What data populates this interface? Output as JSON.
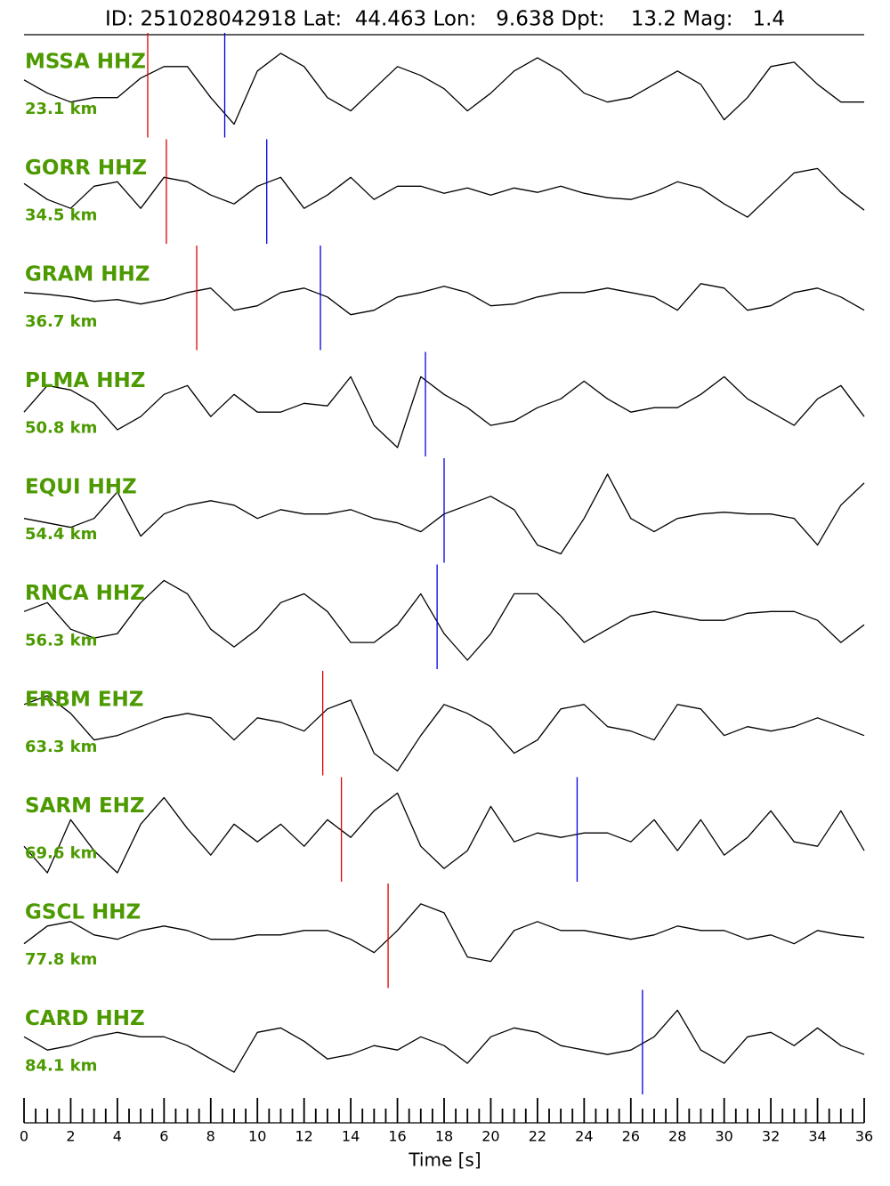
{
  "chart_data": {
    "type": "seismogram",
    "title": "ID: 251028042918 Lat:  44.463 Lon:   9.638 Dpt:    13.2 Mag:   1.4",
    "xlabel": "Time [s]",
    "xlim": [
      0,
      36
    ],
    "xticks": [
      0,
      2,
      4,
      6,
      8,
      10,
      12,
      14,
      16,
      18,
      20,
      22,
      24,
      26,
      28,
      30,
      32,
      34,
      36
    ],
    "xminorticks": [
      0.5,
      1,
      1.5,
      2.5,
      3,
      3.5,
      4.5,
      5,
      5.5,
      6.5,
      7,
      7.5,
      8.5,
      9,
      9.5,
      10.5,
      11,
      11.5,
      12.5,
      13,
      13.5,
      14.5,
      15,
      15.5,
      16.5,
      17,
      17.5,
      18.5,
      19,
      19.5,
      20.5,
      21,
      21.5,
      22.5,
      23,
      23.5,
      24.5,
      25,
      25.5,
      26.5,
      27,
      27.5,
      28.5,
      29,
      29.5,
      30.5,
      31,
      31.5,
      32.5,
      33,
      33.5,
      34.5,
      35,
      35.5
    ],
    "x": [
      0,
      1,
      2,
      3,
      4,
      5,
      6,
      7,
      8,
      9,
      10,
      11,
      12,
      13,
      14,
      15,
      16,
      17,
      18,
      19,
      20,
      21,
      22,
      23,
      24,
      25,
      26,
      27,
      28,
      29,
      30,
      31,
      32,
      33,
      34,
      35,
      36
    ],
    "ylim": [
      -60,
      60
    ],
    "trace_color": "#000000",
    "p_color": "#e00000",
    "s_color": "#0000e0",
    "label_color": "#4c9a00",
    "series": [
      {
        "name": "MSSA HHZ",
        "label": "23.1 km",
        "p_pick": 5.3,
        "s_pick": 8.6,
        "values": [
          5,
          -10,
          -20,
          -15,
          -15,
          7,
          20,
          20,
          -15,
          -45,
          15,
          35,
          20,
          -15,
          -30,
          -5,
          20,
          10,
          -5,
          -30,
          -10,
          15,
          30,
          15,
          -10,
          -20,
          -15,
          0,
          15,
          0,
          -40,
          -15,
          20,
          25,
          0,
          -20,
          -20
        ]
      },
      {
        "name": "GORR HHZ",
        "label": "34.5 km",
        "p_pick": 6.1,
        "s_pick": 10.4,
        "values": [
          8,
          -10,
          -20,
          5,
          10,
          -20,
          15,
          10,
          -5,
          -15,
          5,
          15,
          -20,
          -5,
          15,
          -10,
          5,
          5,
          -3,
          3,
          -5,
          3,
          -2,
          5,
          -3,
          -8,
          -10,
          -2,
          10,
          3,
          -15,
          -30,
          -5,
          20,
          25,
          -2,
          -22
        ]
      },
      {
        "name": "GRAM HHZ",
        "label": "36.7 km",
        "p_pick": 7.4,
        "s_pick": 12.7,
        "values": [
          5,
          3,
          0,
          -5,
          -3,
          -8,
          -3,
          5,
          10,
          -15,
          -10,
          5,
          10,
          0,
          -20,
          -15,
          0,
          5,
          12,
          5,
          -10,
          -8,
          0,
          5,
          5,
          10,
          5,
          0,
          -15,
          15,
          10,
          -15,
          -10,
          5,
          10,
          0,
          -15
        ]
      },
      {
        "name": "PLMA HHZ",
        "label": "50.8 km",
        "s_pick": 17.2,
        "values": [
          -10,
          20,
          15,
          0,
          -30,
          -15,
          10,
          20,
          -15,
          10,
          -10,
          -10,
          0,
          -3,
          30,
          -25,
          -50,
          30,
          10,
          -5,
          -25,
          -20,
          -5,
          5,
          25,
          5,
          -10,
          -5,
          -5,
          10,
          30,
          5,
          -10,
          -25,
          5,
          20,
          -15
        ]
      },
      {
        "name": "EQUI HHZ",
        "label": "54.4 km",
        "s_pick": 18.0,
        "values": [
          -10,
          -15,
          -20,
          -10,
          20,
          -30,
          -5,
          5,
          10,
          5,
          -10,
          0,
          -5,
          -5,
          0,
          -10,
          -15,
          -25,
          -5,
          5,
          15,
          0,
          -40,
          -50,
          -10,
          40,
          -10,
          -25,
          -10,
          -5,
          -3,
          -5,
          -5,
          -10,
          -40,
          5,
          30
        ]
      },
      {
        "name": "RNCA HHZ",
        "label": "56.3 km",
        "s_pick": 17.7,
        "values": [
          5,
          15,
          -15,
          -25,
          -20,
          15,
          40,
          25,
          -15,
          -35,
          -15,
          15,
          25,
          5,
          -30,
          -30,
          -10,
          25,
          -20,
          -50,
          -20,
          25,
          25,
          0,
          -30,
          -15,
          0,
          5,
          0,
          -5,
          -5,
          3,
          5,
          5,
          -5,
          -30,
          -10
        ]
      },
      {
        "name": "ERBM EHZ",
        "label": "63.3 km",
        "p_pick": 12.8,
        "values": [
          20,
          30,
          10,
          -20,
          -15,
          -5,
          5,
          10,
          5,
          -20,
          5,
          0,
          -10,
          15,
          25,
          -35,
          -55,
          -15,
          20,
          10,
          -5,
          -35,
          -20,
          15,
          20,
          -5,
          -10,
          -20,
          20,
          15,
          -15,
          -5,
          -10,
          -5,
          5,
          -5,
          -15
        ]
      },
      {
        "name": "SARM EHZ",
        "label": "69.6 km",
        "p_pick": 13.6,
        "s_pick": 23.7,
        "values": [
          -20,
          -50,
          10,
          -25,
          -50,
          5,
          35,
          0,
          -30,
          5,
          -15,
          5,
          -20,
          10,
          -10,
          20,
          40,
          -20,
          -45,
          -25,
          25,
          -15,
          -5,
          -10,
          -5,
          -5,
          -15,
          10,
          -25,
          10,
          -30,
          -10,
          20,
          -15,
          -20,
          20,
          -25
        ]
      },
      {
        "name": "GSCL HHZ",
        "label": "77.8 km",
        "p_pick": 15.6,
        "values": [
          -10,
          10,
          15,
          0,
          -5,
          5,
          10,
          5,
          -5,
          -5,
          0,
          0,
          5,
          5,
          -5,
          -20,
          5,
          35,
          25,
          -25,
          -30,
          5,
          15,
          5,
          5,
          0,
          -5,
          0,
          10,
          5,
          5,
          -5,
          0,
          -10,
          5,
          0,
          -3
        ]
      },
      {
        "name": "CARD HHZ",
        "label": "84.1 km",
        "s_pick": 26.5,
        "values": [
          5,
          -10,
          -5,
          5,
          10,
          5,
          5,
          -5,
          -20,
          -35,
          10,
          15,
          0,
          -20,
          -15,
          -5,
          -10,
          5,
          -5,
          -25,
          5,
          15,
          10,
          -5,
          -10,
          -15,
          -10,
          5,
          35,
          -10,
          -25,
          5,
          10,
          -5,
          15,
          -5,
          -15
        ]
      }
    ]
  }
}
